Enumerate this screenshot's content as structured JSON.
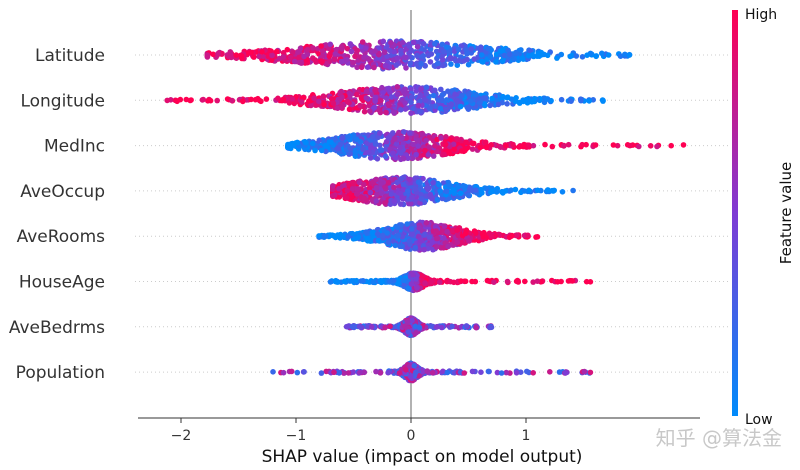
{
  "chart_data": {
    "type": "scatter",
    "subtype": "beeswarm",
    "xlabel": "SHAP value (impact on model output)",
    "xlim": [
      -2.35,
      2.6
    ],
    "xticks": [
      -2,
      -1,
      0,
      1
    ],
    "xtick_labels": [
      "−2",
      "−1",
      "0",
      "1"
    ],
    "grid": false,
    "colorbar": {
      "label": "Feature value",
      "high": "High",
      "low": "Low",
      "colors": [
        "#008bfb",
        "#7f3bd4",
        "#ff0052"
      ]
    },
    "features": [
      {
        "name": "Latitude",
        "min": -1.77,
        "max": 1.9,
        "core": [
          -0.9,
          0.6
        ],
        "high_effect": "negative"
      },
      {
        "name": "Longitude",
        "min": -2.12,
        "max": 1.67,
        "core": [
          -0.6,
          0.5
        ],
        "high_effect": "negative"
      },
      {
        "name": "MedInc",
        "min": -1.07,
        "max": 2.37,
        "core": [
          -0.6,
          0.3
        ],
        "high_effect": "positive"
      },
      {
        "name": "AveOccup",
        "min": -0.68,
        "max": 1.41,
        "core": [
          -0.5,
          0.3
        ],
        "high_effect": "negative"
      },
      {
        "name": "AveRooms",
        "min": -0.8,
        "max": 1.1,
        "core": [
          -0.2,
          0.4
        ],
        "high_effect": "positive"
      },
      {
        "name": "HouseAge",
        "min": -0.7,
        "max": 1.56,
        "core": [
          -0.05,
          0.1
        ],
        "high_effect": "positive"
      },
      {
        "name": "AveBedrms",
        "min": -0.56,
        "max": 0.7,
        "core": [
          -0.05,
          0.05
        ],
        "high_effect": "mixed"
      },
      {
        "name": "Population",
        "min": -1.2,
        "max": 1.56,
        "core": [
          -0.05,
          0.05
        ],
        "high_effect": "mixed"
      }
    ]
  },
  "watermark": "知乎 @算法金"
}
